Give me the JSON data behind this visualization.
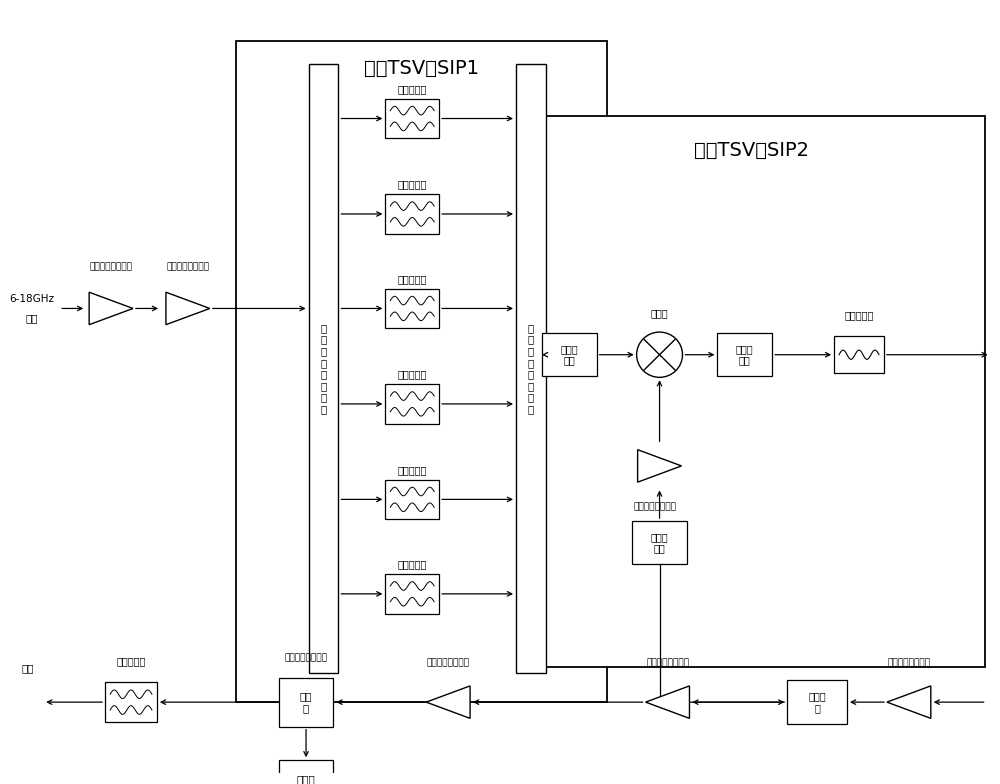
{
  "bg_color": "#ffffff",
  "sip1_label": "基于TSV的SIP1",
  "sip2_label": "基于TSV的SIP2",
  "filter_labels": [
    "第一滤波器",
    "第二滤波器",
    "第三滤波器",
    "第四滤波器",
    "第五滤波器",
    "第六滤波器"
  ],
  "switch1_label": "第\n一\n单\n刀\n多\n掷\n开\n关",
  "switch2_label": "第\n二\n单\n刀\n多\n掷\n开\n关",
  "lna1_label": "第一低噪声放大器",
  "lna2_label": "第二低噪声放大器",
  "lna3_label": "第三低噪声放大器",
  "lna4_label": "第四低噪声放大器",
  "lna5_label": "第五低噪声放大器",
  "lna6_label": "第六低噪声放大器",
  "att1_label": "第一衰\n减器",
  "att2_label": "第二衰\n减器",
  "att3_label": "第三衰\n减器",
  "mixer_label": "混频器",
  "filter7_label": "第七滤波器",
  "filter8_label": "第八滤波器",
  "divider_label": "功分\n器",
  "detector_label": "检波器",
  "digital_att_label": "数控衰\n减",
  "input_label1": "第一低噪声放大器",
  "input_label2": "第二低噪声放大器",
  "input_freq": "6-18GHz",
  "input_text": "输入",
  "output_label": "输出"
}
